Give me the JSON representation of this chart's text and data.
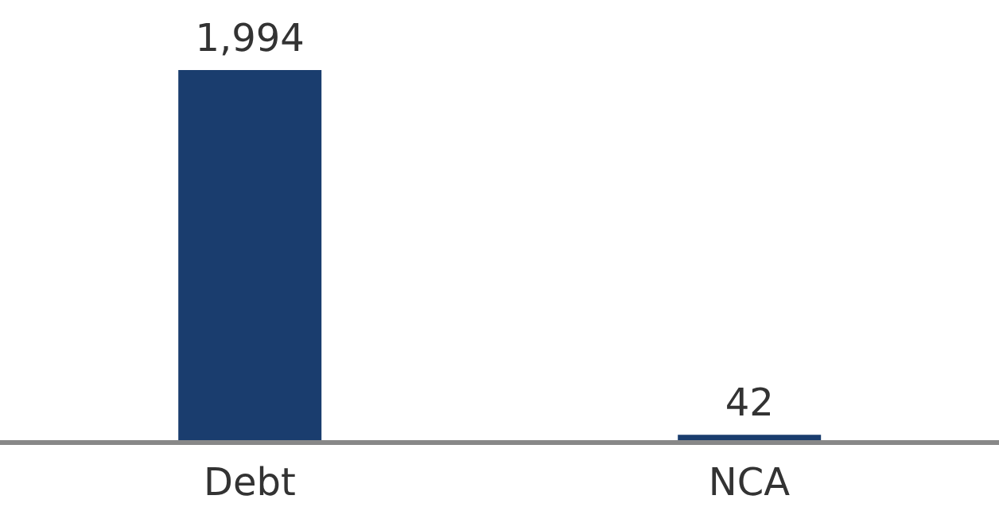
{
  "chart_data": {
    "type": "bar",
    "categories": [
      "Debt",
      "NCA"
    ],
    "values": [
      1994,
      42
    ],
    "value_labels": [
      "1,994",
      "42"
    ],
    "color": "#1a3d6e",
    "grid": false,
    "legend": false
  }
}
